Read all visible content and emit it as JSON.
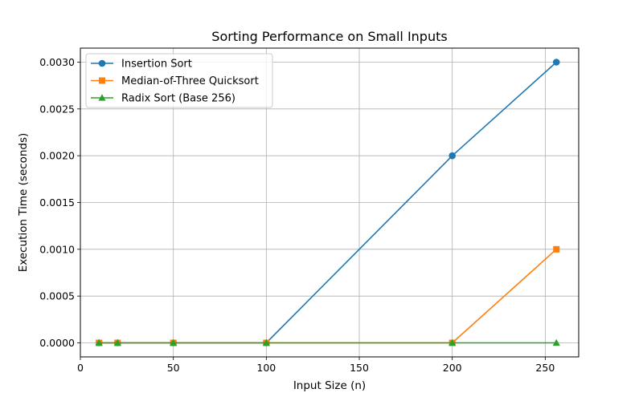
{
  "chart_data": {
    "type": "line",
    "title": "Sorting Performance on Small Inputs",
    "xlabel": "Input Size (n)",
    "ylabel": "Execution Time (seconds)",
    "xlim": [
      0,
      268
    ],
    "ylim": [
      -0.00015,
      0.00315
    ],
    "xticks": [
      0,
      50,
      100,
      150,
      200,
      250
    ],
    "yticks": [
      0.0,
      0.0005,
      0.001,
      0.0015,
      0.002,
      0.0025,
      0.003
    ],
    "xtick_labels": [
      "0",
      "50",
      "100",
      "150",
      "200",
      "250"
    ],
    "ytick_labels": [
      "0.0000",
      "0.0005",
      "0.0010",
      "0.0015",
      "0.0020",
      "0.0025",
      "0.0030"
    ],
    "grid": true,
    "legend_position": "upper-left",
    "x": [
      10,
      20,
      50,
      100,
      200,
      256
    ],
    "series": [
      {
        "name": "Insertion Sort",
        "values": [
          0.0,
          0.0,
          0.0,
          0.0,
          0.002,
          0.003
        ],
        "color": "#1f77b4",
        "marker": "circle"
      },
      {
        "name": "Median-of-Three Quicksort",
        "values": [
          0.0,
          0.0,
          0.0,
          0.0,
          0.0,
          0.001
        ],
        "color": "#ff7f0e",
        "marker": "square"
      },
      {
        "name": "Radix Sort (Base 256)",
        "values": [
          0.0,
          0.0,
          0.0,
          0.0,
          0.0,
          0.0
        ],
        "color": "#2ca02c",
        "marker": "triangle"
      }
    ]
  }
}
